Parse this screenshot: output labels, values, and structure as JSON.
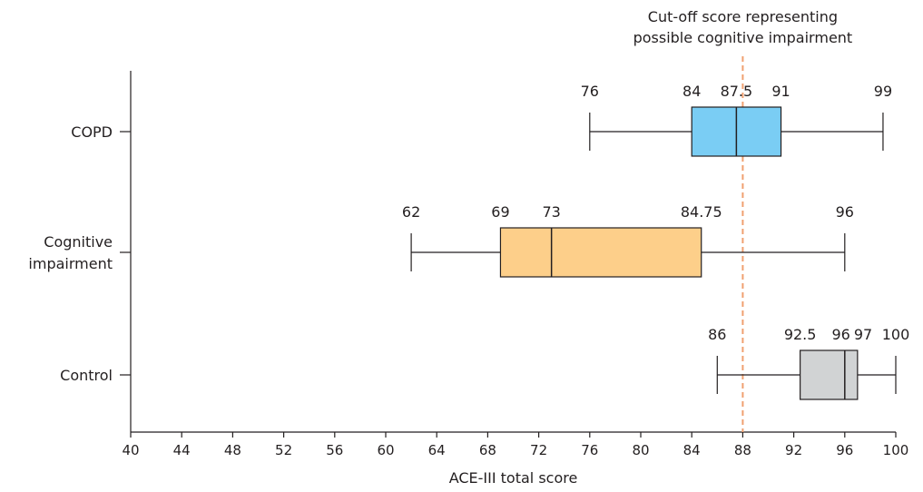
{
  "chart_data": {
    "type": "boxplot",
    "xlabel": "ACE-III total score",
    "xlim": [
      40,
      100
    ],
    "xticks": [
      40,
      44,
      48,
      52,
      56,
      60,
      64,
      68,
      72,
      76,
      80,
      84,
      88,
      92,
      96,
      100
    ],
    "grid": false,
    "series": [
      {
        "category": "COPD",
        "min": 76,
        "q1": 84,
        "median": 87.5,
        "q3": 91,
        "max": 99,
        "labels": [
          "76",
          "84",
          "87.5",
          "91",
          "99"
        ],
        "color": "#7acdf4"
      },
      {
        "category": "Cognitive impairment",
        "category_lines": [
          "Cognitive",
          "impairment"
        ],
        "min": 62,
        "q1": 69,
        "median": 73,
        "q3": 84.75,
        "max": 96,
        "labels": [
          "62",
          "69",
          "73",
          "84.75",
          "96"
        ],
        "color": "#fdcf8a"
      },
      {
        "category": "Control",
        "min": 86,
        "q1": 92.5,
        "median": 96,
        "q3": 97,
        "max": 100,
        "labels": [
          "86",
          "92.5",
          "96",
          "97",
          "100"
        ],
        "color": "#d1d3d4"
      }
    ],
    "reference_line": {
      "value": 88,
      "color": "#f0a070",
      "label_lines": [
        "Cut-off score representing",
        "possible cognitive impairment"
      ]
    }
  }
}
